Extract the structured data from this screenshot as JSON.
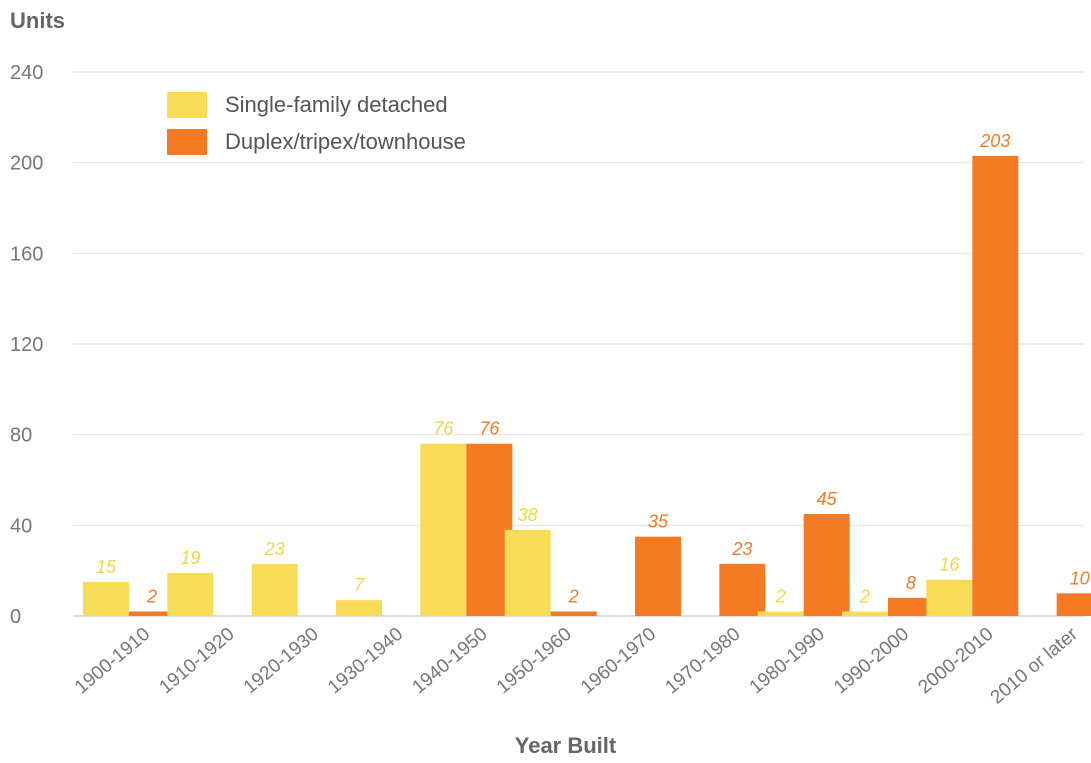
{
  "chart_data": {
    "type": "bar",
    "title": "",
    "xlabel": "Year Built",
    "ylabel": "Units",
    "ylim": [
      0,
      240
    ],
    "yticks": [
      0,
      40,
      80,
      120,
      160,
      200,
      240
    ],
    "grid": true,
    "legend_position": "top-left",
    "categories": [
      "1900-1910",
      "1910-1920",
      "1920-1930",
      "1930-1940",
      "1940-1950",
      "1950-1960",
      "1960-1970",
      "1970-1980",
      "1980-1990",
      "1990-2000",
      "2000-2010",
      "2010 or later"
    ],
    "series": [
      {
        "name": "Single-family detached",
        "color": "#f7dc57",
        "label_color": "#f2d640",
        "values": [
          15,
          19,
          23,
          7,
          76,
          38,
          0,
          0,
          2,
          2,
          16,
          0
        ],
        "labels": [
          "15",
          "19",
          "23",
          "7",
          "76",
          "38",
          "",
          "",
          "2",
          "2",
          "16",
          ""
        ]
      },
      {
        "name": "Duplex/tripex/townhouse",
        "color": "#f47a24",
        "label_color": "#f47a24",
        "values": [
          2,
          0,
          0,
          0,
          76,
          2,
          35,
          23,
          45,
          8,
          203,
          10
        ],
        "labels": [
          "2",
          "",
          "",
          "",
          "76",
          "2",
          "35",
          "23",
          "45",
          "8",
          "203",
          "10"
        ]
      }
    ]
  }
}
